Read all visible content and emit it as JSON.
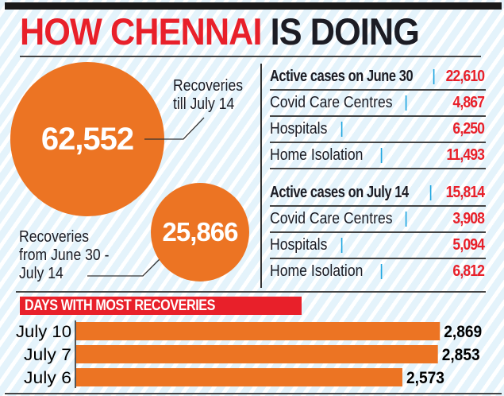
{
  "header": {
    "title_red": "HOW CHENNAI",
    "title_dark": "IS DOING"
  },
  "bubbles": [
    {
      "value": "62,552",
      "label_lines": [
        "Recoveries",
        "till July 14"
      ]
    },
    {
      "value": "25,866",
      "label_lines": [
        "Recoveries",
        "from June 30 -",
        "July 14"
      ]
    }
  ],
  "tables": [
    {
      "heading": "Active cases on June 30",
      "heading_value": "22,610",
      "rows": [
        {
          "name": "Covid Care Centres",
          "value": "4,867"
        },
        {
          "name": "Hospitals",
          "value": "6,250"
        },
        {
          "name": "Home Isolation",
          "value": "11,493"
        }
      ]
    },
    {
      "heading": "Active cases on July 14",
      "heading_value": "15,814",
      "rows": [
        {
          "name": "Covid Care Centres",
          "value": "3,908"
        },
        {
          "name": "Hospitals",
          "value": "5,094"
        },
        {
          "name": "Home Isolation",
          "value": "6,812"
        }
      ]
    }
  ],
  "separator": "|",
  "colors": {
    "accent_red": "#e8202a",
    "bubble_orange": "#ec7423",
    "separator_blue": "#1fa6e0",
    "text_dark": "#1c1c24"
  },
  "chart_data": {
    "type": "bar",
    "orientation": "horizontal",
    "title": "DAYS WITH MOST RECOVERIES",
    "categories": [
      "July 10",
      "July 7",
      "July 6"
    ],
    "values": [
      2869,
      2853,
      2573
    ],
    "value_labels": [
      "2,869",
      "2,853",
      "2,573"
    ],
    "xlabel": "",
    "ylabel": "",
    "grid": false
  }
}
